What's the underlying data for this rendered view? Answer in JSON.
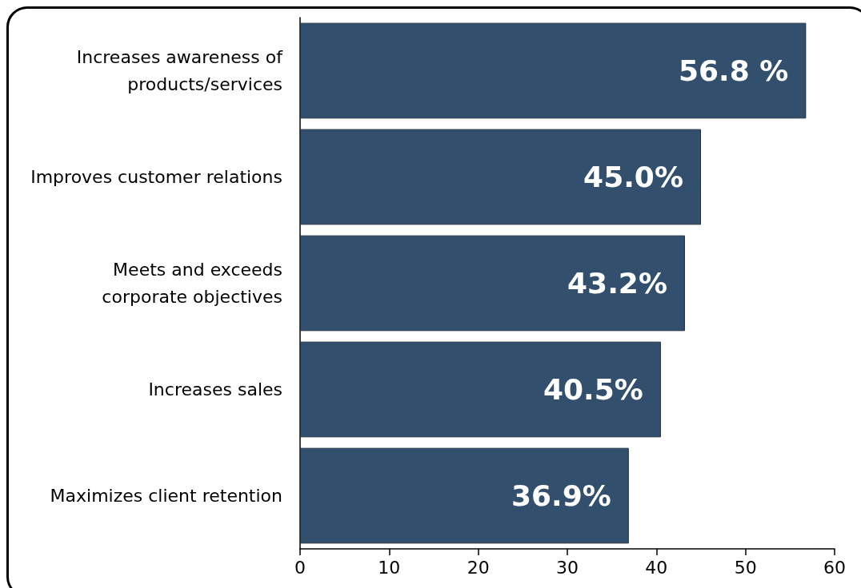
{
  "chart_data": {
    "type": "bar",
    "orientation": "horizontal",
    "categories": [
      "Increases awareness of\nproducts/services",
      "Improves customer relations",
      "Meets and exceeds\ncorporate objectives",
      "Increases sales",
      "Maximizes client retention"
    ],
    "values": [
      56.8,
      45.0,
      43.2,
      40.5,
      36.9
    ],
    "value_labels": [
      "56.8 %",
      "45.0%",
      "43.2%",
      "40.5%",
      "36.9%"
    ],
    "color": "#324f6e",
    "xlim": [
      0,
      60
    ],
    "xticks": [
      0,
      10,
      20,
      30,
      40,
      50,
      60
    ],
    "grid": false
  }
}
